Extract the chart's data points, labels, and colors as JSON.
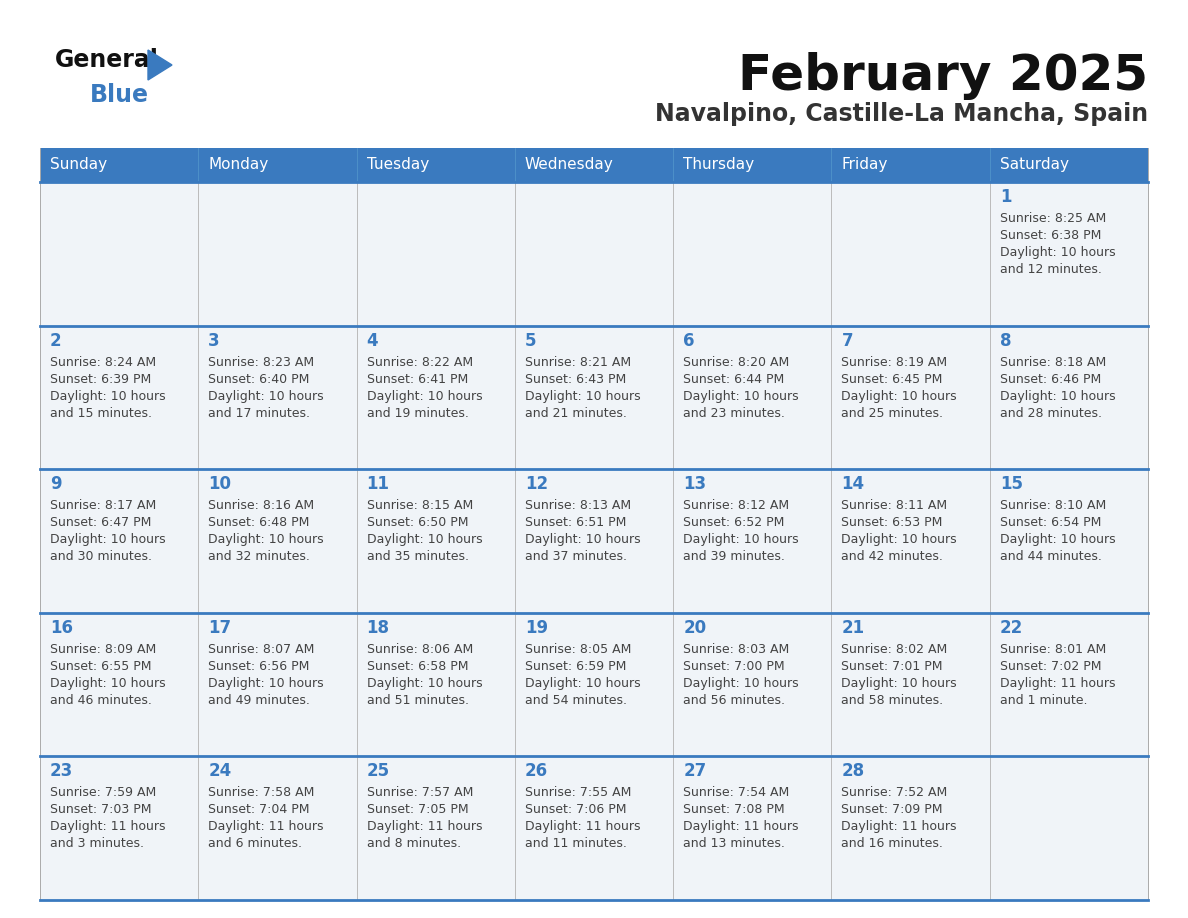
{
  "title": "February 2025",
  "subtitle": "Navalpino, Castille-La Mancha, Spain",
  "days_of_week": [
    "Sunday",
    "Monday",
    "Tuesday",
    "Wednesday",
    "Thursday",
    "Friday",
    "Saturday"
  ],
  "header_bg": "#3a7abf",
  "header_text": "#ffffff",
  "cell_bg": "#f0f4f8",
  "border_color": "#3a7abf",
  "day_num_color": "#3a7abf",
  "text_color": "#444444",
  "title_color": "#111111",
  "subtitle_color": "#333333",
  "logo_general_color": "#111111",
  "logo_blue_color": "#3a7abf",
  "calendar": [
    [
      null,
      null,
      null,
      null,
      null,
      null,
      {
        "day": "1",
        "sunrise": "8:25 AM",
        "sunset": "6:38 PM",
        "daylight_h": "10 hours",
        "daylight_m": "12 minutes"
      }
    ],
    [
      {
        "day": "2",
        "sunrise": "8:24 AM",
        "sunset": "6:39 PM",
        "daylight_h": "10 hours",
        "daylight_m": "15 minutes"
      },
      {
        "day": "3",
        "sunrise": "8:23 AM",
        "sunset": "6:40 PM",
        "daylight_h": "10 hours",
        "daylight_m": "17 minutes"
      },
      {
        "day": "4",
        "sunrise": "8:22 AM",
        "sunset": "6:41 PM",
        "daylight_h": "10 hours",
        "daylight_m": "19 minutes"
      },
      {
        "day": "5",
        "sunrise": "8:21 AM",
        "sunset": "6:43 PM",
        "daylight_h": "10 hours",
        "daylight_m": "21 minutes"
      },
      {
        "day": "6",
        "sunrise": "8:20 AM",
        "sunset": "6:44 PM",
        "daylight_h": "10 hours",
        "daylight_m": "23 minutes"
      },
      {
        "day": "7",
        "sunrise": "8:19 AM",
        "sunset": "6:45 PM",
        "daylight_h": "10 hours",
        "daylight_m": "25 minutes"
      },
      {
        "day": "8",
        "sunrise": "8:18 AM",
        "sunset": "6:46 PM",
        "daylight_h": "10 hours",
        "daylight_m": "28 minutes"
      }
    ],
    [
      {
        "day": "9",
        "sunrise": "8:17 AM",
        "sunset": "6:47 PM",
        "daylight_h": "10 hours",
        "daylight_m": "30 minutes"
      },
      {
        "day": "10",
        "sunrise": "8:16 AM",
        "sunset": "6:48 PM",
        "daylight_h": "10 hours",
        "daylight_m": "32 minutes"
      },
      {
        "day": "11",
        "sunrise": "8:15 AM",
        "sunset": "6:50 PM",
        "daylight_h": "10 hours",
        "daylight_m": "35 minutes"
      },
      {
        "day": "12",
        "sunrise": "8:13 AM",
        "sunset": "6:51 PM",
        "daylight_h": "10 hours",
        "daylight_m": "37 minutes"
      },
      {
        "day": "13",
        "sunrise": "8:12 AM",
        "sunset": "6:52 PM",
        "daylight_h": "10 hours",
        "daylight_m": "39 minutes"
      },
      {
        "day": "14",
        "sunrise": "8:11 AM",
        "sunset": "6:53 PM",
        "daylight_h": "10 hours",
        "daylight_m": "42 minutes"
      },
      {
        "day": "15",
        "sunrise": "8:10 AM",
        "sunset": "6:54 PM",
        "daylight_h": "10 hours",
        "daylight_m": "44 minutes"
      }
    ],
    [
      {
        "day": "16",
        "sunrise": "8:09 AM",
        "sunset": "6:55 PM",
        "daylight_h": "10 hours",
        "daylight_m": "46 minutes"
      },
      {
        "day": "17",
        "sunrise": "8:07 AM",
        "sunset": "6:56 PM",
        "daylight_h": "10 hours",
        "daylight_m": "49 minutes"
      },
      {
        "day": "18",
        "sunrise": "8:06 AM",
        "sunset": "6:58 PM",
        "daylight_h": "10 hours",
        "daylight_m": "51 minutes"
      },
      {
        "day": "19",
        "sunrise": "8:05 AM",
        "sunset": "6:59 PM",
        "daylight_h": "10 hours",
        "daylight_m": "54 minutes"
      },
      {
        "day": "20",
        "sunrise": "8:03 AM",
        "sunset": "7:00 PM",
        "daylight_h": "10 hours",
        "daylight_m": "56 minutes"
      },
      {
        "day": "21",
        "sunrise": "8:02 AM",
        "sunset": "7:01 PM",
        "daylight_h": "10 hours",
        "daylight_m": "58 minutes"
      },
      {
        "day": "22",
        "sunrise": "8:01 AM",
        "sunset": "7:02 PM",
        "daylight_h": "11 hours",
        "daylight_m": "1 minute"
      }
    ],
    [
      {
        "day": "23",
        "sunrise": "7:59 AM",
        "sunset": "7:03 PM",
        "daylight_h": "11 hours",
        "daylight_m": "3 minutes"
      },
      {
        "day": "24",
        "sunrise": "7:58 AM",
        "sunset": "7:04 PM",
        "daylight_h": "11 hours",
        "daylight_m": "6 minutes"
      },
      {
        "day": "25",
        "sunrise": "7:57 AM",
        "sunset": "7:05 PM",
        "daylight_h": "11 hours",
        "daylight_m": "8 minutes"
      },
      {
        "day": "26",
        "sunrise": "7:55 AM",
        "sunset": "7:06 PM",
        "daylight_h": "11 hours",
        "daylight_m": "11 minutes"
      },
      {
        "day": "27",
        "sunrise": "7:54 AM",
        "sunset": "7:08 PM",
        "daylight_h": "11 hours",
        "daylight_m": "13 minutes"
      },
      {
        "day": "28",
        "sunrise": "7:52 AM",
        "sunset": "7:09 PM",
        "daylight_h": "11 hours",
        "daylight_m": "16 minutes"
      },
      null
    ]
  ]
}
